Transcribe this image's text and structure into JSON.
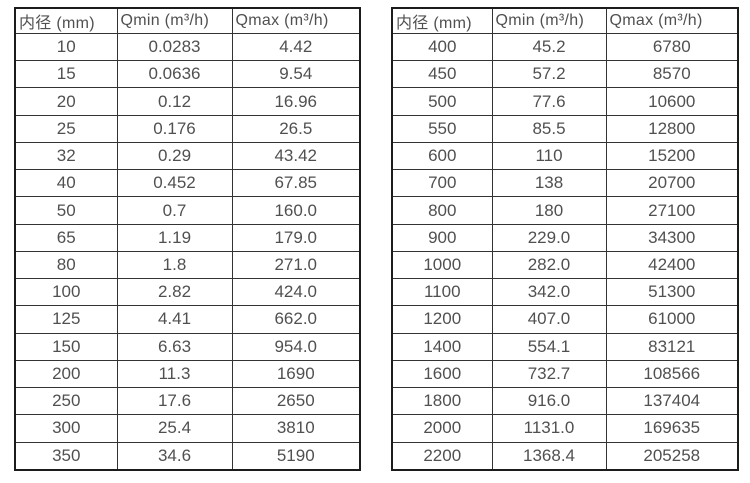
{
  "page": {
    "description": "Flow meter inner diameter vs minimum and maximum flow rate specification tables"
  },
  "colors": {
    "background": "#ffffff",
    "text": "#505050",
    "border_outer": "#1c1c1c",
    "border_inner": "#333333"
  },
  "tables": [
    {
      "name": "small-diameters",
      "headers": [
        "内径 (mm)",
        "Qmin (m³/h)",
        "Qmax (m³/h)"
      ],
      "rows": [
        [
          "10",
          "0.0283",
          "4.42"
        ],
        [
          "15",
          "0.0636",
          "9.54"
        ],
        [
          "20",
          "0.12",
          "16.96"
        ],
        [
          "25",
          "0.176",
          "26.5"
        ],
        [
          "32",
          "0.29",
          "43.42"
        ],
        [
          "40",
          "0.452",
          "67.85"
        ],
        [
          "50",
          "0.7",
          "160.0"
        ],
        [
          "65",
          "1.19",
          "179.0"
        ],
        [
          "80",
          "1.8",
          "271.0"
        ],
        [
          "100",
          "2.82",
          "424.0"
        ],
        [
          "125",
          "4.41",
          "662.0"
        ],
        [
          "150",
          "6.63",
          "954.0"
        ],
        [
          "200",
          "11.3",
          "1690"
        ],
        [
          "250",
          "17.6",
          "2650"
        ],
        [
          "300",
          "25.4",
          "3810"
        ],
        [
          "350",
          "34.6",
          "5190"
        ]
      ]
    },
    {
      "name": "large-diameters",
      "headers": [
        "内径 (mm)",
        "Qmin (m³/h)",
        "Qmax (m³/h)"
      ],
      "rows": [
        [
          "400",
          "45.2",
          "6780"
        ],
        [
          "450",
          "57.2",
          "8570"
        ],
        [
          "500",
          "77.6",
          "10600"
        ],
        [
          "550",
          "85.5",
          "12800"
        ],
        [
          "600",
          "110",
          "15200"
        ],
        [
          "700",
          "138",
          "20700"
        ],
        [
          "800",
          "180",
          "27100"
        ],
        [
          "900",
          "229.0",
          "34300"
        ],
        [
          "1000",
          "282.0",
          "42400"
        ],
        [
          "1100",
          "342.0",
          "51300"
        ],
        [
          "1200",
          "407.0",
          "61000"
        ],
        [
          "1400",
          "554.1",
          "83121"
        ],
        [
          "1600",
          "732.7",
          "108566"
        ],
        [
          "1800",
          "916.0",
          "137404"
        ],
        [
          "2000",
          "1131.0",
          "169635"
        ],
        [
          "2200",
          "1368.4",
          "205258"
        ]
      ]
    }
  ]
}
